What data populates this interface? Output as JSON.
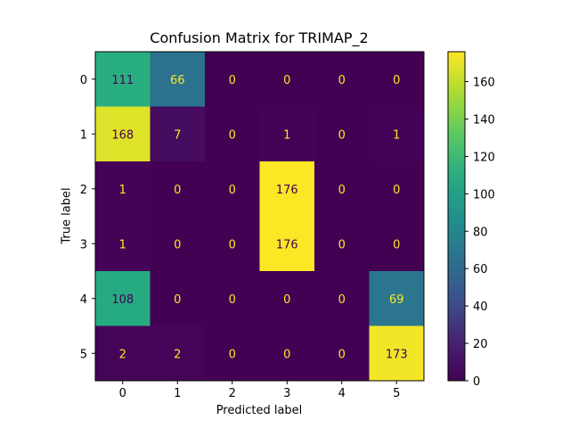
{
  "chart_data": {
    "type": "heatmap",
    "title": "Confusion Matrix for TRIMAP_2",
    "xlabel": "Predicted label",
    "ylabel": "True label",
    "x_categories": [
      "0",
      "1",
      "2",
      "3",
      "4",
      "5"
    ],
    "y_categories": [
      "0",
      "1",
      "2",
      "3",
      "4",
      "5"
    ],
    "matrix": [
      [
        111,
        66,
        0,
        0,
        0,
        0
      ],
      [
        168,
        7,
        0,
        1,
        0,
        1
      ],
      [
        1,
        0,
        0,
        176,
        0,
        0
      ],
      [
        1,
        0,
        0,
        176,
        0,
        0
      ],
      [
        108,
        0,
        0,
        0,
        0,
        69
      ],
      [
        2,
        2,
        0,
        0,
        0,
        173
      ]
    ],
    "colormap": "viridis",
    "colorbar": {
      "range": [
        0,
        176
      ],
      "ticks": [
        0,
        20,
        40,
        60,
        80,
        100,
        120,
        140,
        160
      ]
    },
    "text_colors": {
      "on_dark": "#fde725",
      "on_light": "#440154"
    }
  }
}
